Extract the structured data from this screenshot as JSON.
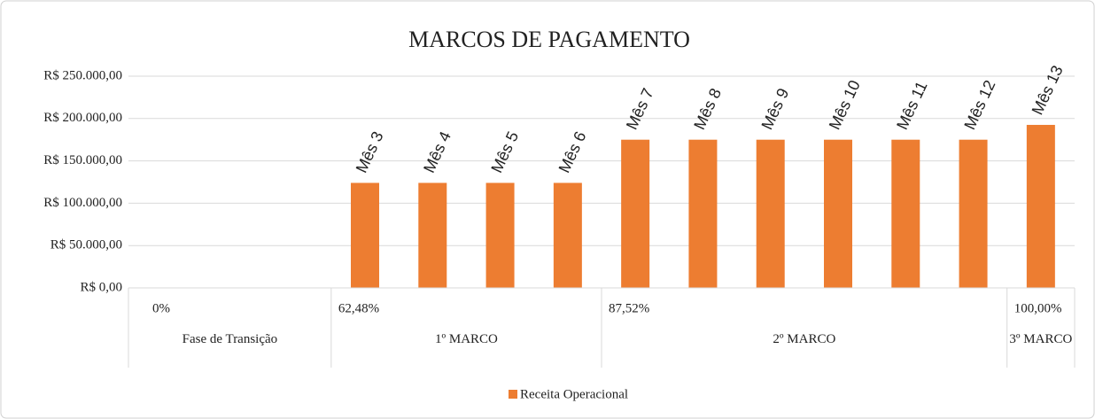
{
  "chart_data": {
    "type": "bar",
    "title": "MARCOS DE PAGAMENTO",
    "categories": [
      null,
      null,
      null,
      "Mês 3",
      "Mês 4",
      "Mês 5",
      "Mês 6",
      "Mês 7",
      "Mês 8",
      "Mês 9",
      "Mês 10",
      "Mês 11",
      "Mês 12",
      "Mês 13"
    ],
    "groups": [
      {
        "name": "Fase de Transição",
        "percent": "0%",
        "count": 3
      },
      {
        "name": "1º MARCO",
        "percent": "62,48%",
        "count": 4
      },
      {
        "name": "2º MARCO",
        "percent": "87,52%",
        "count": 6
      },
      {
        "name": "3º MARCO",
        "percent": "100,00%",
        "count": 1
      }
    ],
    "series": [
      {
        "name": "Receita Operacional",
        "color": "#ed7d31",
        "values": [
          null,
          null,
          null,
          124000,
          124000,
          124000,
          124000,
          175000,
          175000,
          175000,
          175000,
          175000,
          175000,
          192500
        ]
      }
    ],
    "ylim": [
      0,
      250000
    ],
    "yticks": [
      {
        "value": 0,
        "label": "R$ 0,00"
      },
      {
        "value": 50000,
        "label": "R$ 50.000,00"
      },
      {
        "value": 100000,
        "label": "R$ 100.000,00"
      },
      {
        "value": 150000,
        "label": "R$ 150.000,00"
      },
      {
        "value": 200000,
        "label": "R$ 200.000,00"
      },
      {
        "value": 250000,
        "label": "R$ 250.000,00"
      }
    ],
    "grid": true,
    "legend": "bottom"
  }
}
